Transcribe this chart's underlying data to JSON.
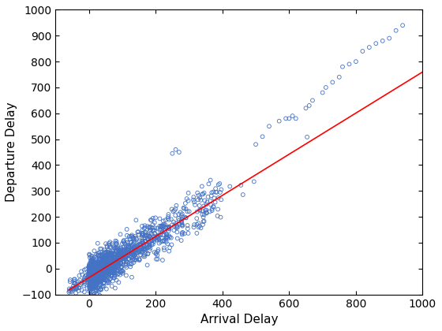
{
  "title": "",
  "xlabel": "Arrival Delay",
  "ylabel": "Departure Delay",
  "xlim": [
    -100,
    1000
  ],
  "ylim": [
    -100,
    1000
  ],
  "xticks": [
    0,
    200,
    400,
    600,
    800,
    1000
  ],
  "yticks": [
    -100,
    0,
    100,
    200,
    300,
    400,
    500,
    600,
    700,
    800,
    900,
    1000
  ],
  "scatter_color": "#4472C4",
  "scatter_facecolor": "none",
  "scatter_edgewidth": 0.6,
  "scatter_size": 12,
  "line_color": "#FF0000",
  "line_width": 1.2,
  "line_x_start": -60,
  "line_x_end": 1000,
  "line_slope": 0.795,
  "line_intercept": -35.0,
  "seed": 42,
  "background_color": "#ffffff",
  "figsize": [
    5.6,
    4.2
  ],
  "dpi": 100
}
